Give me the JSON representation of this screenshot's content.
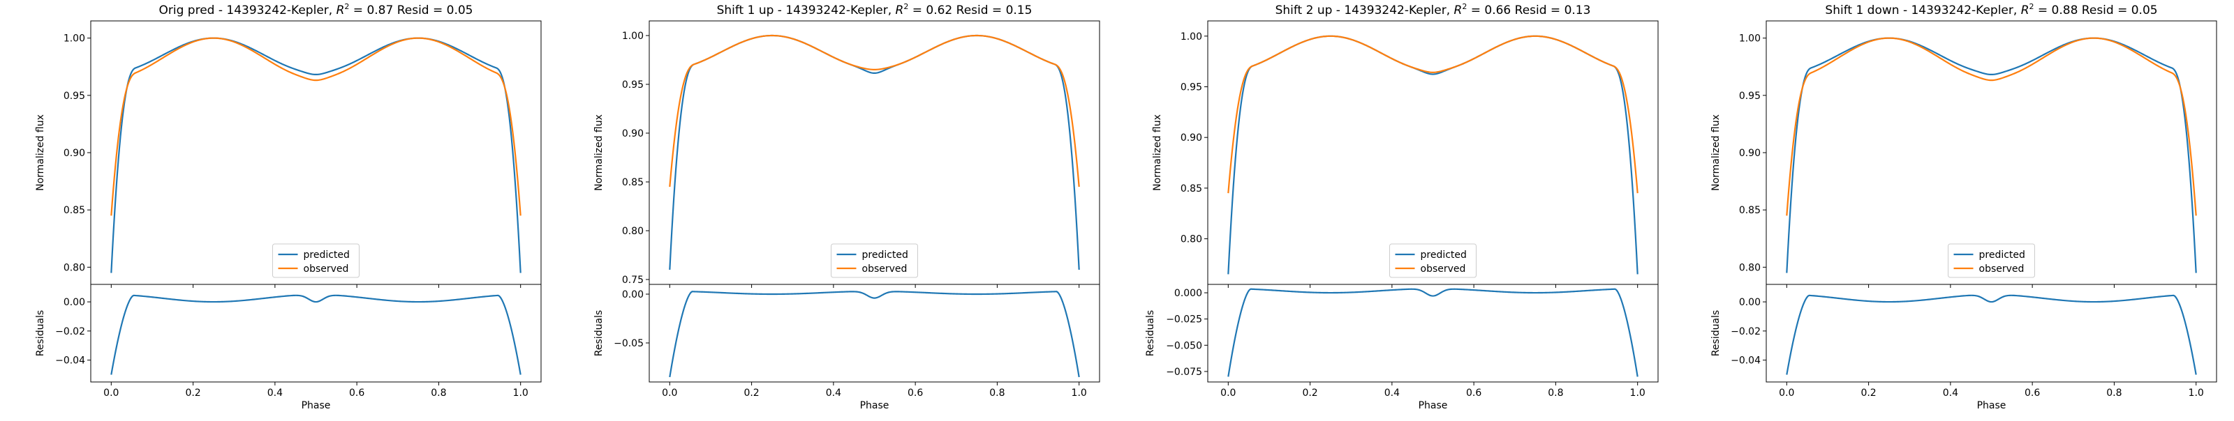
{
  "figure": {
    "series_colors": {
      "predicted": "#1f77b4",
      "observed": "#ff7f0e"
    },
    "legend_entries": [
      "predicted",
      "observed"
    ]
  },
  "chart_data": [
    {
      "type": "line",
      "title": "Orig pred - 14393242-Kepler, R² = 0.87 Resid = 0.05",
      "title_parts": {
        "prefix": "Orig pred - 14393242-Kepler, ",
        "r": "R",
        "sup": "2",
        "suffix": " = 0.87 Resid = 0.05"
      },
      "main": {
        "ylabel": "Normalized flux",
        "ylim": [
          0.785,
          1.015
        ],
        "yticks": [
          0.8,
          0.85,
          0.9,
          0.95,
          1.0
        ],
        "ytick_labels": [
          "0.80",
          "0.85",
          "0.90",
          "0.95",
          "1.00"
        ],
        "legend": "lower-center",
        "predicted": {
          "base": 0.97,
          "edge": 0.795,
          "dip": 0.968
        },
        "observed": {
          "base": 0.965,
          "edge": 0.845,
          "dip": 0.963
        }
      },
      "resid": {
        "ylabel": "Residuals",
        "ylim": [
          -0.055,
          0.012
        ],
        "yticks": [
          -0.04,
          -0.02,
          0.0
        ],
        "ytick_labels": [
          "−0.04",
          "−0.02",
          "0.00"
        ],
        "values": {
          "peak": 0.005,
          "mid": 0.0,
          "dip": 0.0,
          "edge": -0.05
        }
      },
      "xlabel": "Phase",
      "xlim": [
        -0.05,
        1.05
      ],
      "xticks": [
        0.0,
        0.2,
        0.4,
        0.6,
        0.8,
        1.0
      ],
      "xtick_labels": [
        "0.0",
        "0.2",
        "0.4",
        "0.6",
        "0.8",
        "1.0"
      ]
    },
    {
      "type": "line",
      "title": "Shift 1 up - 14393242-Kepler, R² = 0.62 Resid = 0.15",
      "title_parts": {
        "prefix": "Shift 1 up - 14393242-Kepler, ",
        "r": "R",
        "sup": "2",
        "suffix": " = 0.62 Resid = 0.15"
      },
      "main": {
        "ylabel": "Normalized flux",
        "ylim": [
          0.745,
          1.015
        ],
        "yticks": [
          0.75,
          0.8,
          0.85,
          0.9,
          0.95,
          1.0
        ],
        "ytick_labels": [
          "0.75",
          "0.80",
          "0.85",
          "0.90",
          "0.95",
          "1.00"
        ],
        "legend": "lower-center",
        "predicted": {
          "base": 0.966,
          "edge": 0.76,
          "dip": 0.961
        },
        "observed": {
          "base": 0.966,
          "edge": 0.845,
          "dip": 0.965
        }
      },
      "resid": {
        "ylabel": "Residuals",
        "ylim": [
          -0.09,
          0.01
        ],
        "yticks": [
          -0.05,
          0.0
        ],
        "ytick_labels": [
          "−0.05",
          "0.00"
        ],
        "values": {
          "peak": 0.003,
          "mid": 0.0,
          "dip": -0.004,
          "edge": -0.085
        }
      },
      "xlabel": "Phase",
      "xlim": [
        -0.05,
        1.05
      ],
      "xticks": [
        0.0,
        0.2,
        0.4,
        0.6,
        0.8,
        1.0
      ],
      "xtick_labels": [
        "0.0",
        "0.2",
        "0.4",
        "0.6",
        "0.8",
        "1.0"
      ]
    },
    {
      "type": "line",
      "title": "Shift 2 up - 14393242-Kepler, R² = 0.66 Resid = 0.13",
      "title_parts": {
        "prefix": "Shift 2 up - 14393242-Kepler, ",
        "r": "R",
        "sup": "2",
        "suffix": " = 0.66 Resid = 0.13"
      },
      "main": {
        "ylabel": "Normalized flux",
        "ylim": [
          0.755,
          1.015
        ],
        "yticks": [
          0.8,
          0.85,
          0.9,
          0.95,
          1.0
        ],
        "ytick_labels": [
          "0.80",
          "0.85",
          "0.90",
          "0.95",
          "1.00"
        ],
        "legend": "lower-center",
        "predicted": {
          "base": 0.966,
          "edge": 0.765,
          "dip": 0.962
        },
        "observed": {
          "base": 0.966,
          "edge": 0.845,
          "dip": 0.964
        }
      },
      "resid": {
        "ylabel": "Residuals",
        "ylim": [
          -0.085,
          0.008
        ],
        "yticks": [
          -0.075,
          -0.05,
          -0.025,
          0.0
        ],
        "ytick_labels": [
          "−0.075",
          "−0.050",
          "−0.025",
          "0.000"
        ],
        "values": {
          "peak": 0.004,
          "mid": 0.0,
          "dip": -0.003,
          "edge": -0.08
        }
      },
      "xlabel": "Phase",
      "xlim": [
        -0.05,
        1.05
      ],
      "xticks": [
        0.0,
        0.2,
        0.4,
        0.6,
        0.8,
        1.0
      ],
      "xtick_labels": [
        "0.0",
        "0.2",
        "0.4",
        "0.6",
        "0.8",
        "1.0"
      ]
    },
    {
      "type": "line",
      "title": "Shift 1 down - 14393242-Kepler, R² = 0.88 Resid = 0.05",
      "title_parts": {
        "prefix": "Shift 1 down - 14393242-Kepler, ",
        "r": "R",
        "sup": "2",
        "suffix": " = 0.88 Resid = 0.05"
      },
      "main": {
        "ylabel": "Normalized flux",
        "ylim": [
          0.785,
          1.015
        ],
        "yticks": [
          0.8,
          0.85,
          0.9,
          0.95,
          1.0
        ],
        "ytick_labels": [
          "0.80",
          "0.85",
          "0.90",
          "0.95",
          "1.00"
        ],
        "legend": "lower-center",
        "predicted": {
          "base": 0.97,
          "edge": 0.795,
          "dip": 0.968
        },
        "observed": {
          "base": 0.965,
          "edge": 0.845,
          "dip": 0.963
        }
      },
      "resid": {
        "ylabel": "Residuals",
        "ylim": [
          -0.055,
          0.012
        ],
        "yticks": [
          -0.04,
          -0.02,
          0.0
        ],
        "ytick_labels": [
          "−0.04",
          "−0.02",
          "0.00"
        ],
        "values": {
          "peak": 0.005,
          "mid": 0.0,
          "dip": 0.0,
          "edge": -0.05
        }
      },
      "xlabel": "Phase",
      "xlim": [
        -0.05,
        1.05
      ],
      "xticks": [
        0.0,
        0.2,
        0.4,
        0.6,
        0.8,
        1.0
      ],
      "xtick_labels": [
        "0.0",
        "0.2",
        "0.4",
        "0.6",
        "0.8",
        "1.0"
      ]
    }
  ]
}
